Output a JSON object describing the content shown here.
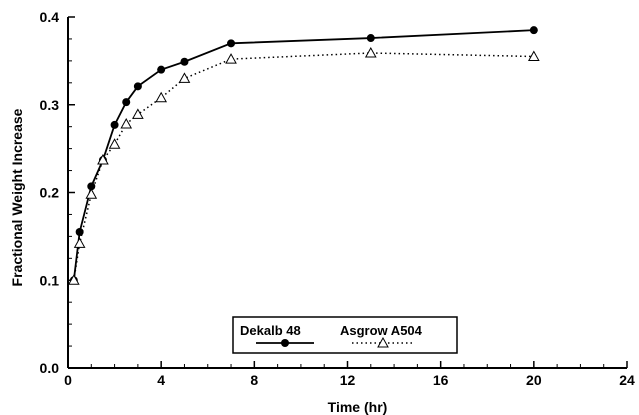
{
  "chart_data": {
    "type": "line",
    "title": "",
    "xlabel": "Time (hr)",
    "ylabel": "Fractional Weight Increase",
    "xlim": [
      0,
      24
    ],
    "ylim": [
      0,
      0.4
    ],
    "xticks": [
      0,
      4,
      8,
      12,
      16,
      20,
      24
    ],
    "yticks": [
      0.0,
      0.1,
      0.2,
      0.3,
      0.4
    ],
    "xtick_labels": [
      "0",
      "4",
      "8",
      "12",
      "16",
      "20",
      "24"
    ],
    "ytick_labels": [
      "0.0",
      "0.1",
      "0.2",
      "0.3",
      "0.4"
    ],
    "grid": false,
    "legend_position": "bottom-center",
    "series": [
      {
        "name": "Dekalb 48",
        "style": "solid",
        "marker": "filled-circle",
        "color": "#000000",
        "x": [
          0.25,
          0.5,
          1,
          1.5,
          2,
          2.5,
          3,
          4,
          5,
          7,
          13,
          20
        ],
        "y": [
          0.1,
          0.155,
          0.207,
          0.237,
          0.277,
          0.303,
          0.321,
          0.34,
          0.349,
          0.37,
          0.376,
          0.385
        ]
      },
      {
        "name": "Asgrow A504",
        "style": "dotted",
        "marker": "open-triangle",
        "color": "#000000",
        "x": [
          0.25,
          0.5,
          1,
          1.5,
          2,
          2.5,
          3,
          4,
          5,
          7,
          13,
          20
        ],
        "y": [
          0.1,
          0.142,
          0.198,
          0.237,
          0.255,
          0.278,
          0.289,
          0.308,
          0.33,
          0.352,
          0.359,
          0.355
        ]
      }
    ]
  }
}
